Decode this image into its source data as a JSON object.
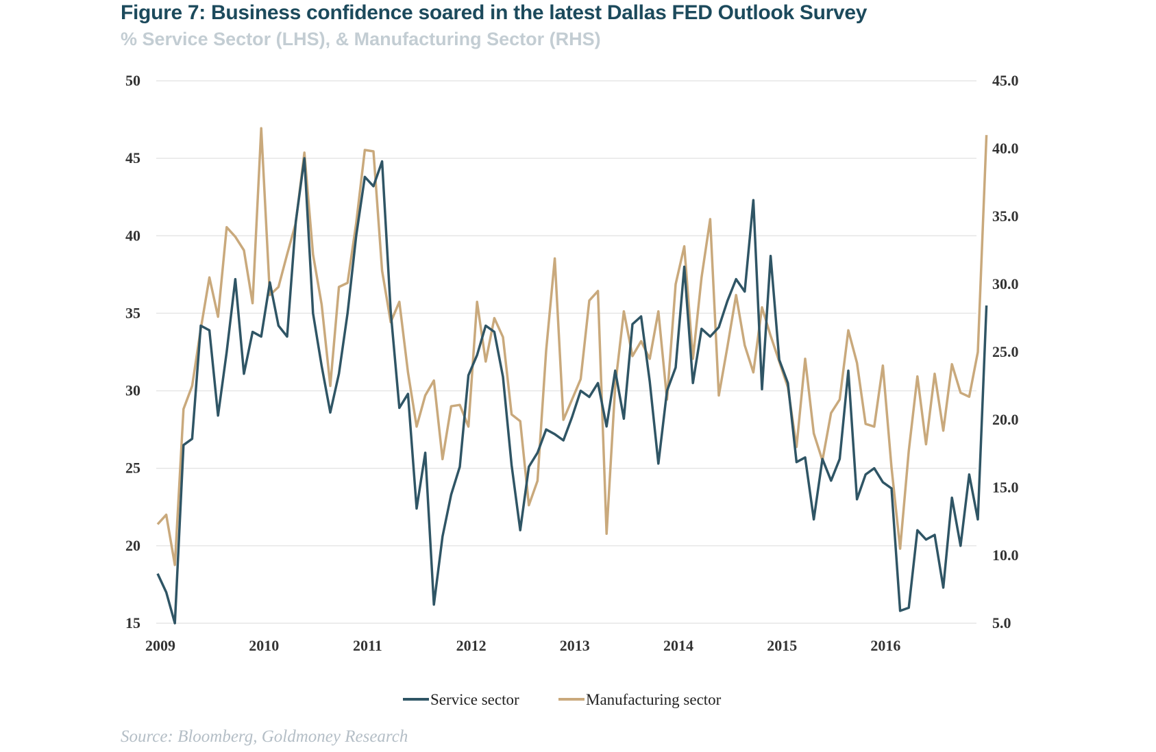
{
  "title": "Figure 7: Business confidence soared in the latest Dallas FED Outlook Survey",
  "subtitle": "% Service Sector (LHS), & Manufacturing Sector (RHS)",
  "source": "Source: Bloomberg, Goldmoney Research",
  "colors": {
    "service": "#2f5565",
    "manufacturing": "#c9a97c",
    "grid": "#e6e6e6"
  },
  "chart_data": {
    "type": "line",
    "x_start_year": 2009,
    "x_tick_labels": [
      "2009",
      "2010",
      "2011",
      "2012",
      "2013",
      "2014",
      "2015",
      "2016"
    ],
    "left_axis": {
      "ylim": [
        15,
        50
      ],
      "tick_labels": [
        "15",
        "20",
        "25",
        "30",
        "35",
        "40",
        "45",
        "50"
      ]
    },
    "right_axis": {
      "ylim": [
        5,
        45
      ],
      "tick_labels": [
        "5.0",
        "10.0",
        "15.0",
        "20.0",
        "25.0",
        "30.0",
        "35.0",
        "40.0",
        "45.0"
      ]
    },
    "grid": true,
    "legend_position": "bottom-center",
    "series": [
      {
        "name": "Service sector",
        "axis": "left",
        "values": [
          18.2,
          17.0,
          14.0,
          26.5,
          26.9,
          34.2,
          33.9,
          28.4,
          32.5,
          37.2,
          31.1,
          33.8,
          33.5,
          37.0,
          34.2,
          33.5,
          40.9,
          45.0,
          35.0,
          31.6,
          28.6,
          31.1,
          35.0,
          40.0,
          43.8,
          43.2,
          44.8,
          35.1,
          28.9,
          29.8,
          22.4,
          26.0,
          16.2,
          20.6,
          23.3,
          25.1,
          31.0,
          32.3,
          34.2,
          33.8,
          30.9,
          25.2,
          21.0,
          25.1,
          26.0,
          27.5,
          27.2,
          26.8,
          28.3,
          30.0,
          29.6,
          30.5,
          27.7,
          31.3,
          28.2,
          34.3,
          34.8,
          30.6,
          25.3,
          30.0,
          31.5,
          38.0,
          30.5,
          34.0,
          33.5,
          34.1,
          35.8,
          37.2,
          36.4,
          42.3,
          30.1,
          38.7,
          32.0,
          30.5,
          25.4,
          25.7,
          21.7,
          25.6,
          24.2,
          25.6,
          31.3,
          23.0,
          24.6,
          25.0,
          24.1,
          23.7,
          15.8,
          16.0,
          21.0,
          20.4,
          20.7,
          17.3,
          23.1,
          20.0,
          24.6,
          21.7,
          35.5
        ]
      },
      {
        "name": "Manufacturing sector",
        "axis": "right",
        "values": [
          12.3,
          13.0,
          9.3,
          20.8,
          22.5,
          26.7,
          30.5,
          27.6,
          34.2,
          33.5,
          32.5,
          28.6,
          41.5,
          29.2,
          29.8,
          32.2,
          34.5,
          39.7,
          32.2,
          28.5,
          22.5,
          29.8,
          30.1,
          34.5,
          39.9,
          39.8,
          31.0,
          27.2,
          28.7,
          23.5,
          19.5,
          21.8,
          22.9,
          17.1,
          21.0,
          21.1,
          19.5,
          28.7,
          24.3,
          27.5,
          26.1,
          20.4,
          19.9,
          13.7,
          15.5,
          25.1,
          31.9,
          20.0,
          21.5,
          23.0,
          28.8,
          29.5,
          11.6,
          22.5,
          28.0,
          24.7,
          25.8,
          24.5,
          28.0,
          21.5,
          30.0,
          32.8,
          24.5,
          30.5,
          34.8,
          21.8,
          25.4,
          29.2,
          25.5,
          23.5,
          28.3,
          26.2,
          24.3,
          22.4,
          18.0,
          24.5,
          19.0,
          17.0,
          20.5,
          21.5,
          26.6,
          24.2,
          19.7,
          19.5,
          24.0,
          16.5,
          10.5,
          17.7,
          23.2,
          18.2,
          23.4,
          19.2,
          24.1,
          22.0,
          21.7,
          25.0,
          41.0
        ]
      }
    ]
  }
}
